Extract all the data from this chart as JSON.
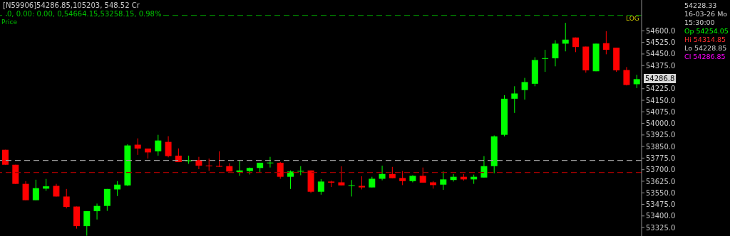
{
  "chart_data": {
    "type": "candlestick",
    "title": "[N59906]54286.85,105203, 548.52 Cr",
    "subtitle": "0, 0.00: 0.00, 0,54664.15,53258.15, 0.98%",
    "ylabel": "Price",
    "categories": [
      null,
      null,
      null,
      null,
      null,
      null,
      null,
      null,
      null,
      null,
      null,
      null,
      null,
      null,
      null,
      null,
      null,
      null,
      null,
      null,
      null,
      null,
      null,
      null,
      null,
      null,
      null,
      null,
      null,
      null,
      null,
      null,
      null,
      null,
      null,
      null,
      null,
      null,
      null,
      null,
      null,
      null,
      null,
      null,
      null,
      null,
      null,
      null,
      null,
      null,
      null,
      null,
      null,
      null,
      null,
      null,
      null,
      null,
      null,
      null,
      null,
      null,
      null
    ],
    "ohlc": [
      [
        53829,
        53829,
        53732,
        53732
      ],
      [
        53732,
        53732,
        53608,
        53608
      ],
      [
        53608,
        53626,
        53502,
        53502
      ],
      [
        53502,
        53635,
        53502,
        53580
      ],
      [
        53577,
        53640,
        53563,
        53592
      ],
      [
        53595,
        53608,
        53526,
        53526
      ],
      [
        53526,
        53575,
        53449,
        53459
      ],
      [
        53461,
        53461,
        53318,
        53334
      ],
      [
        53334,
        53431,
        53272,
        53431
      ],
      [
        53431,
        53480,
        53377,
        53465
      ],
      [
        53465,
        53575,
        53433,
        53575
      ],
      [
        53572,
        53626,
        53529,
        53603
      ],
      [
        53598,
        53865,
        53594,
        53857
      ],
      [
        53862,
        53903,
        53796,
        53837
      ],
      [
        53837,
        53837,
        53772,
        53812
      ],
      [
        53819,
        53926,
        53791,
        53889
      ],
      [
        53880,
        53917,
        53780,
        53788
      ],
      [
        53791,
        53838,
        53749,
        53749
      ],
      [
        53754,
        53791,
        53738,
        53760
      ],
      [
        53762,
        53783,
        53703,
        53726
      ],
      [
        53727,
        53772,
        53692,
        53722
      ],
      [
        53724,
        53819,
        53718,
        53719
      ],
      [
        53723,
        53742,
        53688,
        53688
      ],
      [
        53685,
        53757,
        53660,
        53695
      ],
      [
        53691,
        53714,
        53669,
        53711
      ],
      [
        53711,
        53745,
        53680,
        53745
      ],
      [
        53742,
        53783,
        53714,
        53746
      ],
      [
        53745,
        53750,
        53641,
        53654
      ],
      [
        53654,
        53695,
        53575,
        53688
      ],
      [
        53688,
        53723,
        53664,
        53692
      ],
      [
        53695,
        53695,
        53549,
        53557
      ],
      [
        53557,
        53639,
        53538,
        53623
      ],
      [
        53623,
        53629,
        53588,
        53616
      ],
      [
        53618,
        53722,
        53598,
        53598
      ],
      [
        53595,
        53633,
        53526,
        53599
      ],
      [
        53595,
        53657,
        53572,
        53585
      ],
      [
        53585,
        53654,
        53585,
        53641
      ],
      [
        53641,
        53726,
        53631,
        53672
      ],
      [
        53672,
        53718,
        53645,
        53645
      ],
      [
        53646,
        53691,
        53600,
        53626
      ],
      [
        53626,
        53664,
        53618,
        53660
      ],
      [
        53660,
        53714,
        53616,
        53616
      ],
      [
        53618,
        53626,
        53577,
        53600
      ],
      [
        53603,
        53688,
        53569,
        53637
      ],
      [
        53633,
        53672,
        53623,
        53654
      ],
      [
        53654,
        53672,
        53629,
        53637
      ],
      [
        53637,
        53668,
        53608,
        53654
      ],
      [
        53649,
        53788,
        53649,
        53723
      ],
      [
        53723,
        53922,
        53677,
        53916
      ],
      [
        53926,
        54183,
        53916,
        54160
      ],
      [
        54160,
        54241,
        54068,
        54194
      ],
      [
        54216,
        54295,
        54154,
        54268
      ],
      [
        54257,
        54429,
        54241,
        54411
      ],
      [
        54419,
        54477,
        54334,
        54423
      ],
      [
        54422,
        54539,
        54370,
        54517
      ],
      [
        54517,
        54652,
        54467,
        54543
      ],
      [
        54557,
        54557,
        54462,
        54495
      ],
      [
        54498,
        54498,
        54329,
        54344
      ],
      [
        54338,
        54517,
        54338,
        54517
      ],
      [
        54520,
        54598,
        54448,
        54477
      ],
      [
        54491,
        54491,
        54334,
        54344
      ],
      [
        54346,
        54365,
        54246,
        54249
      ],
      [
        54254.05,
        54314.85,
        54228.85,
        54286.85
      ]
    ],
    "colors": [
      "#ff0000",
      "#ff0000",
      "#ff0000",
      "#00ff00",
      "#00ff00",
      "#ff0000",
      "#ff0000",
      "#ff0000",
      "#00ff00",
      "#00ff00",
      "#00ff00",
      "#00ff00",
      "#00ff00",
      "#ff0000",
      "#ff0000",
      "#00ff00",
      "#ff0000",
      "#ff0000",
      "#00ff00",
      "#ff0000",
      "#ff0000",
      "#ff0000",
      "#ff0000",
      "#00ff00",
      "#00ff00",
      "#00ff00",
      "#00ff00",
      "#ff0000",
      "#00ff00",
      "#00ff00",
      "#ff0000",
      "#00ff00",
      "#ff0000",
      "#ff0000",
      "#00ff00",
      "#ff0000",
      "#00ff00",
      "#00ff00",
      "#ff0000",
      "#ff0000",
      "#00ff00",
      "#ff0000",
      "#ff0000",
      "#00ff00",
      "#00ff00",
      "#ff0000",
      "#00ff00",
      "#00ff00",
      "#00ff00",
      "#00ff00",
      "#00ff00",
      "#00ff00",
      "#00ff00",
      "#00ff00",
      "#00ff00",
      "#00ff00",
      "#ff0000",
      "#ff0000",
      "#00ff00",
      "#ff0000",
      "#ff0000",
      "#ff0000",
      "#00ff00"
    ],
    "ylim": [
      53270,
      54800
    ],
    "yticks": [
      {
        "value": 54600,
        "label": "54600.0"
      },
      {
        "value": 54525,
        "label": "54525.0"
      },
      {
        "value": 54450,
        "label": "54450.0"
      },
      {
        "value": 54375,
        "label": "54375.0"
      },
      {
        "value": 54225,
        "label": "54225.0"
      },
      {
        "value": 54150,
        "label": "54150.0"
      },
      {
        "value": 54075,
        "label": "54075.0"
      },
      {
        "value": 54000,
        "label": "54000.0"
      },
      {
        "value": 53925,
        "label": "53925.0"
      },
      {
        "value": 53850,
        "label": "53850.0"
      },
      {
        "value": 53775,
        "label": "53775.0"
      },
      {
        "value": 53700,
        "label": "53700.0"
      },
      {
        "value": 53625,
        "label": "53625.0"
      },
      {
        "value": 53550,
        "label": "53550.0"
      },
      {
        "value": 53475,
        "label": "53475.0"
      },
      {
        "value": 53400,
        "label": "53400.0"
      },
      {
        "value": 53325,
        "label": "53325.0"
      }
    ],
    "tick_labels": "y",
    "ref_lines": [
      {
        "axis": "y",
        "value": 54700,
        "color": "#008000",
        "line_style": "dashed"
      },
      {
        "axis": "y",
        "value": 53760,
        "color": "#a0a0a0",
        "line_style": "dashed"
      },
      {
        "axis": "y",
        "value": 53682,
        "color": "#a00000",
        "line_style": "dashed"
      }
    ],
    "annotations": [
      "LOG",
      "54228.33",
      "16-03-26 Mo",
      "15:30:00",
      "Op 54254.05",
      "Hi 54314.85",
      "Lo 54228.85",
      "Cl 54286.85",
      "54286.8"
    ]
  }
}
